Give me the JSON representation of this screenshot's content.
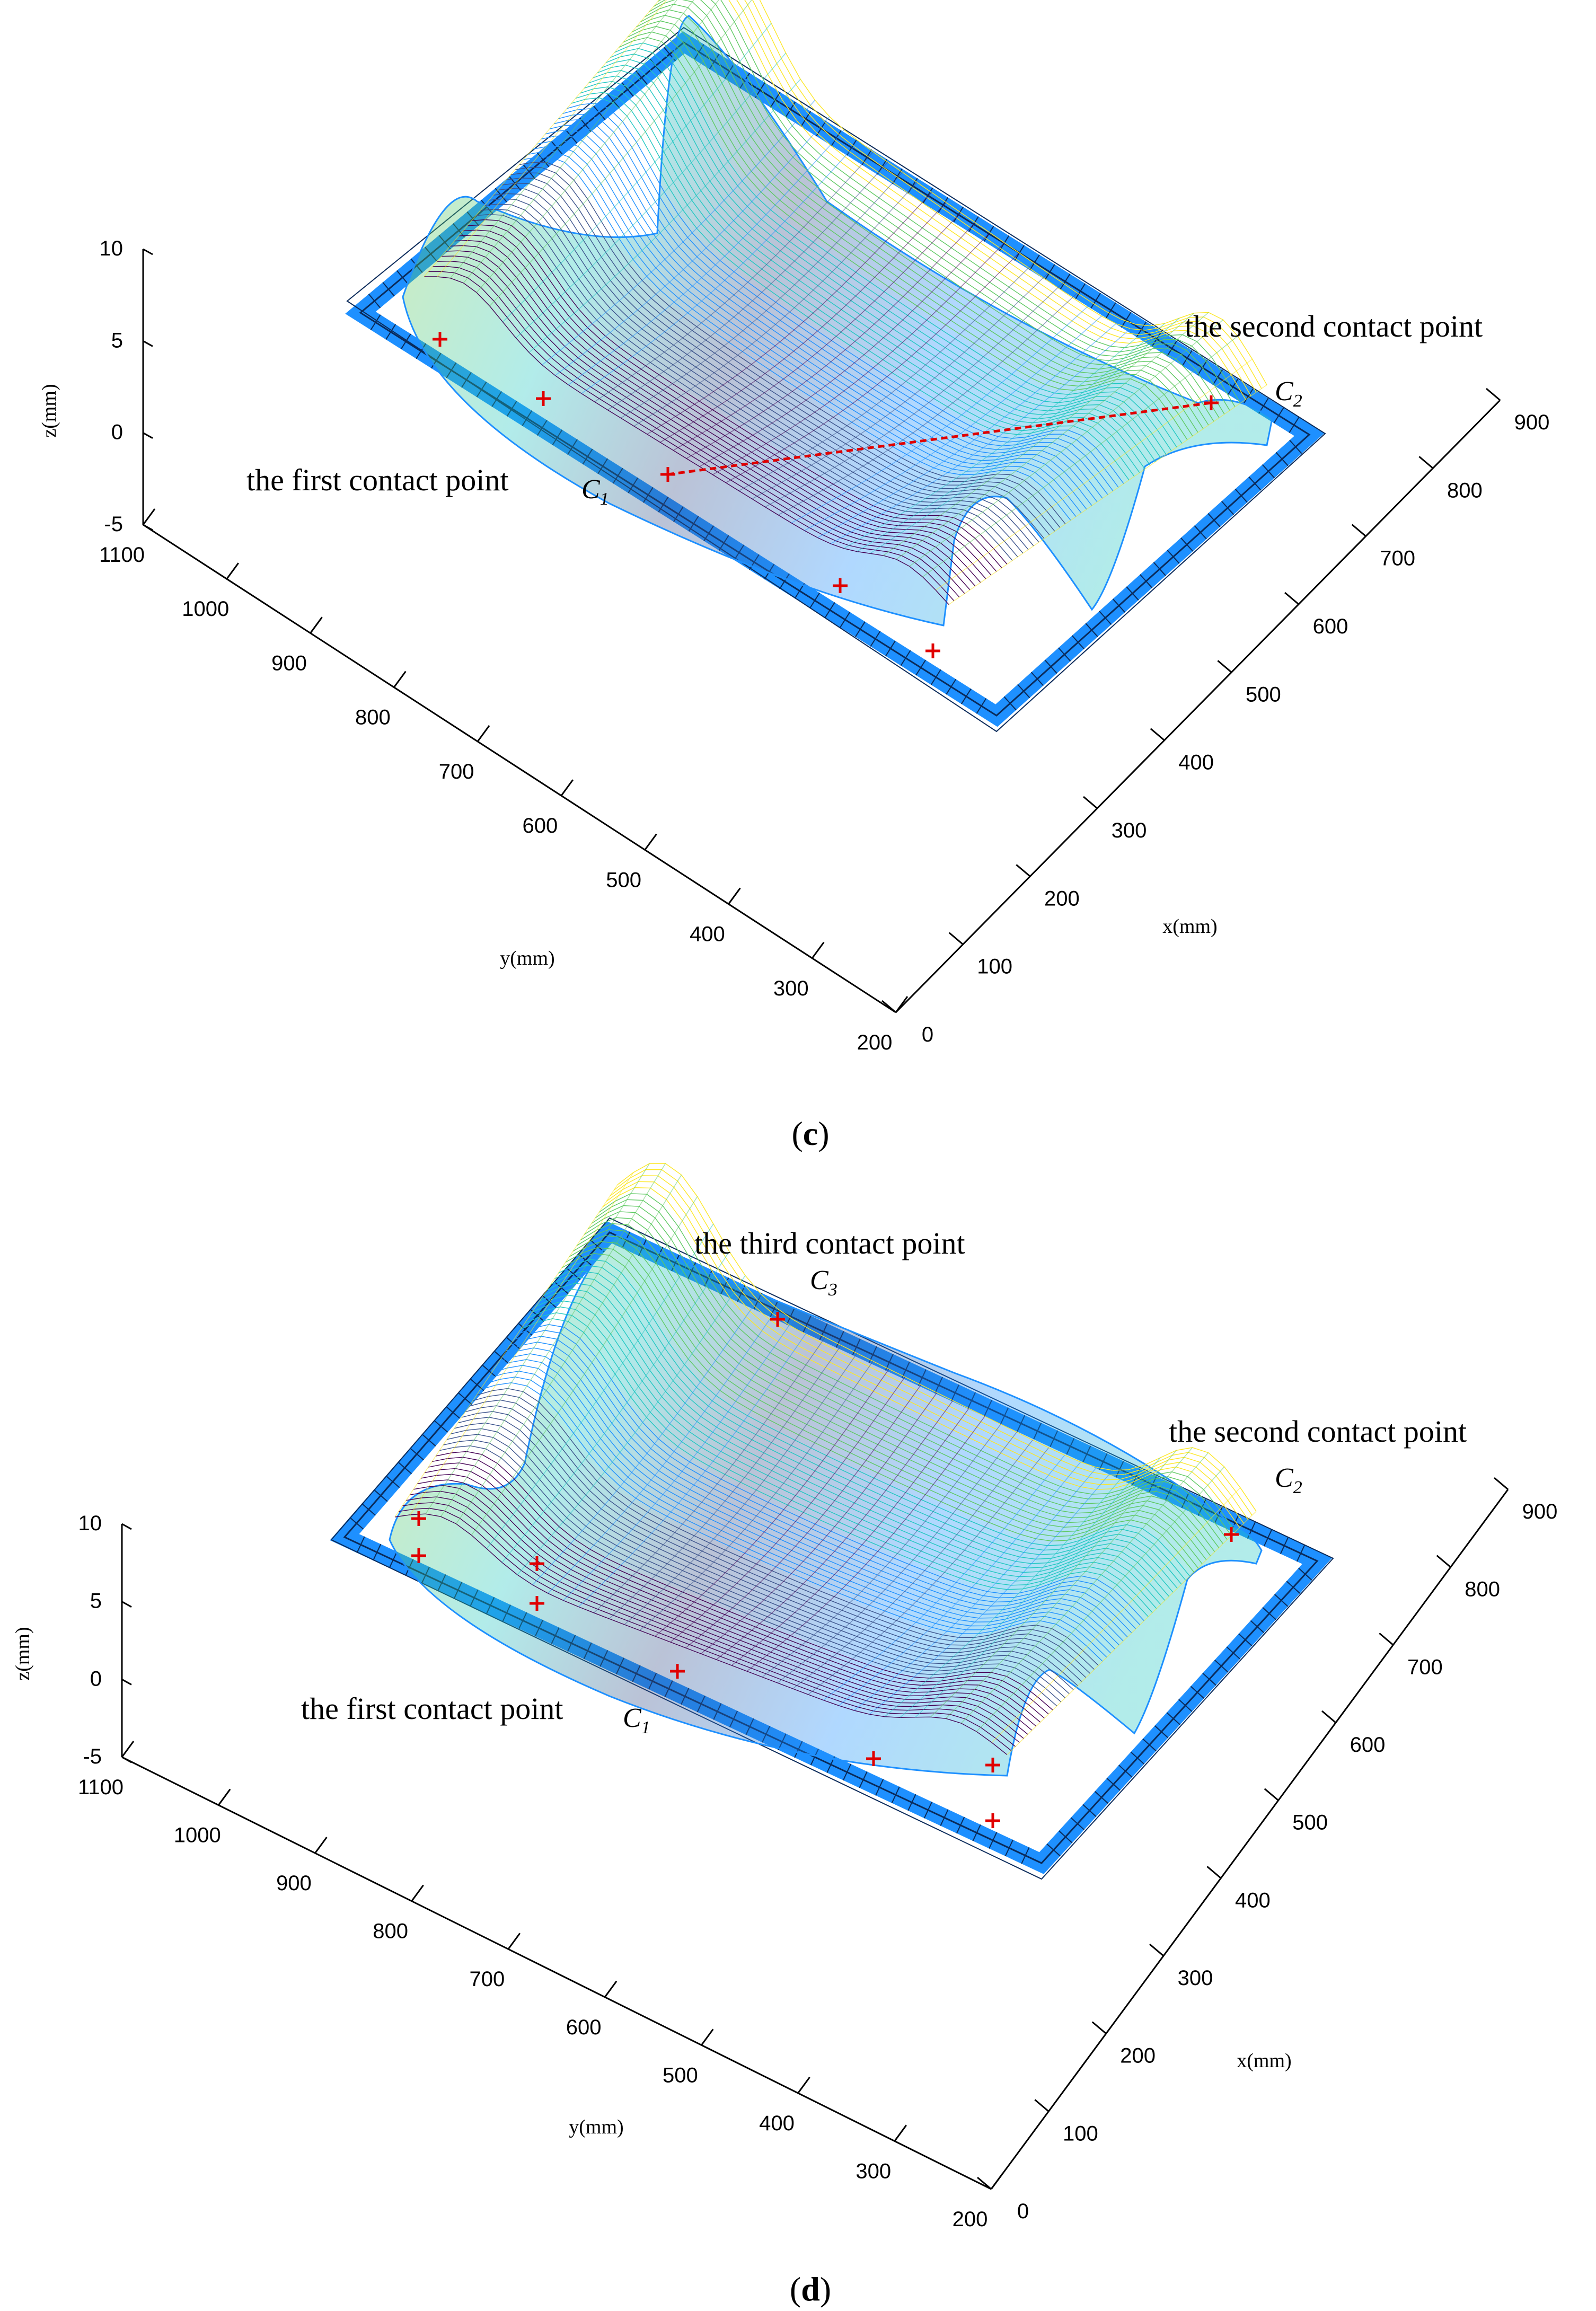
{
  "chart_data": [
    {
      "type": "surface",
      "panel_label": "c",
      "xlabel": "x(mm)",
      "ylabel": "y(mm)",
      "zlabel": "z(mm)",
      "xticks": [
        0,
        100,
        200,
        300,
        400,
        500,
        600,
        700,
        800,
        900
      ],
      "yticks": [
        200,
        300,
        400,
        500,
        600,
        700,
        800,
        900,
        1000,
        1100
      ],
      "zticks": [
        -5,
        0,
        5,
        10
      ],
      "xlim": [
        0,
        900
      ],
      "ylim": [
        200,
        1100
      ],
      "zlim": [
        -5,
        10
      ],
      "grid": false,
      "colormap": [
        "#440154",
        "#3b528b",
        "#1e90ff",
        "#21c7c2",
        "#5ec962",
        "#fde725",
        "#f4a11d"
      ],
      "frame_color": "#1e90ff",
      "annotations": [
        {
          "text": "the first contact point",
          "point": "C",
          "sub": "1"
        },
        {
          "text": "the second contact point",
          "point": "C",
          "sub": "2"
        }
      ],
      "contact_line": true
    },
    {
      "type": "surface",
      "panel_label": "d",
      "xlabel": "x(mm)",
      "ylabel": "y(mm)",
      "zlabel": "z(mm)",
      "xticks": [
        0,
        100,
        200,
        300,
        400,
        500,
        600,
        700,
        800,
        900
      ],
      "yticks": [
        200,
        300,
        400,
        500,
        600,
        700,
        800,
        900,
        1000,
        1100
      ],
      "zticks": [
        -5,
        0,
        5,
        10
      ],
      "xlim": [
        0,
        900
      ],
      "ylim": [
        200,
        1100
      ],
      "zlim": [
        -5,
        10
      ],
      "grid": false,
      "colormap": [
        "#440154",
        "#3b528b",
        "#1e90ff",
        "#21c7c2",
        "#5ec962",
        "#fde725",
        "#f4a11d"
      ],
      "frame_color": "#1e90ff",
      "annotations": [
        {
          "text": "the first contact point",
          "point": "C",
          "sub": "1"
        },
        {
          "text": "the second contact point",
          "point": "C",
          "sub": "2"
        },
        {
          "text": "the third contact point",
          "point": "C",
          "sub": "3"
        }
      ],
      "contact_line": false
    }
  ]
}
